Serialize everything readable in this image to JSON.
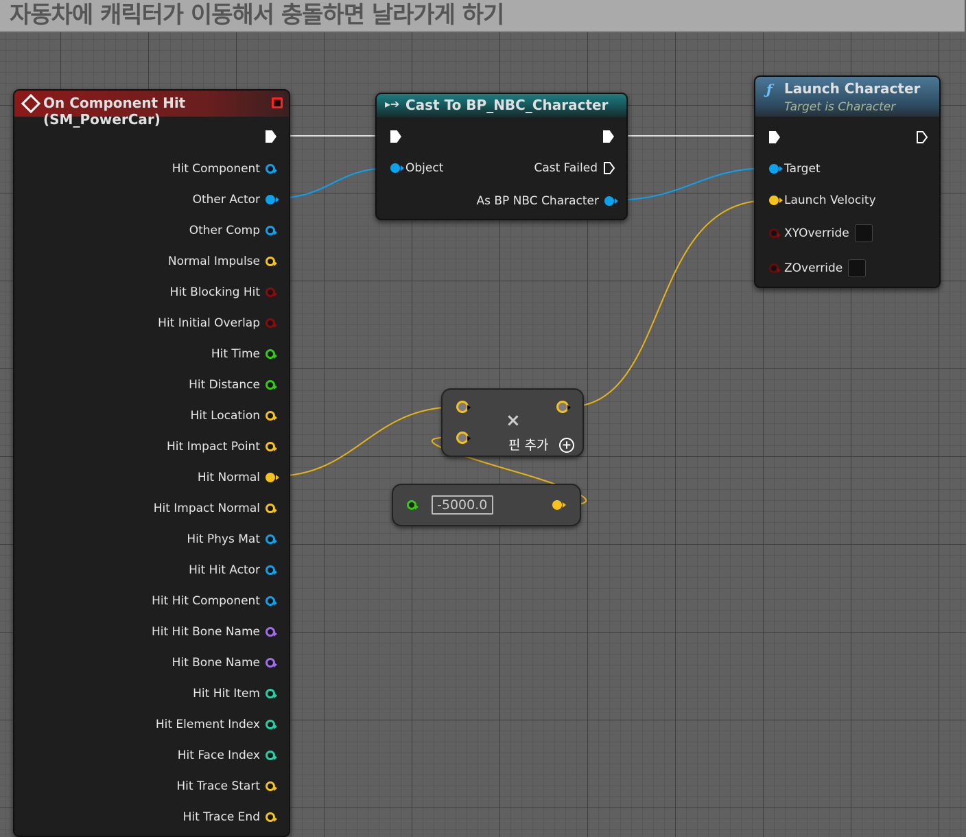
{
  "title": "자동차에 캐릭터가 이동해서 충돌하면 날라가게 하기",
  "colors": {
    "object": "#0ba2f0",
    "vector": "#f4c21a",
    "bool": "#8a0c0c",
    "float": "#33cc11",
    "name": "#a26cf0",
    "int": "#1ed3a6",
    "exec": "#ffffff",
    "event_header": "#8b1a1a",
    "cast_header": "#1b6a6e",
    "function_header": "#3d5f78"
  },
  "event_node": {
    "title": "On Component Hit (SM_PowerCar)",
    "icon": "event-diamond-icon",
    "pins": [
      {
        "label": "Hit Component",
        "type": "object",
        "connected": false
      },
      {
        "label": "Other Actor",
        "type": "object",
        "connected": true
      },
      {
        "label": "Other Comp",
        "type": "object",
        "connected": false
      },
      {
        "label": "Normal Impulse",
        "type": "vector",
        "connected": false
      },
      {
        "label": "Hit Blocking Hit",
        "type": "bool",
        "connected": false
      },
      {
        "label": "Hit Initial Overlap",
        "type": "bool",
        "connected": false
      },
      {
        "label": "Hit Time",
        "type": "float",
        "connected": false
      },
      {
        "label": "Hit Distance",
        "type": "float",
        "connected": false
      },
      {
        "label": "Hit Location",
        "type": "vector",
        "connected": false
      },
      {
        "label": "Hit Impact Point",
        "type": "vector",
        "connected": false
      },
      {
        "label": "Hit Normal",
        "type": "vector",
        "connected": true
      },
      {
        "label": "Hit Impact Normal",
        "type": "vector",
        "connected": false
      },
      {
        "label": "Hit Phys Mat",
        "type": "object",
        "connected": false
      },
      {
        "label": "Hit Hit Actor",
        "type": "object",
        "connected": false
      },
      {
        "label": "Hit Hit Component",
        "type": "object",
        "connected": false
      },
      {
        "label": "Hit Hit Bone Name",
        "type": "name",
        "connected": false
      },
      {
        "label": "Hit Bone Name",
        "type": "name",
        "connected": false
      },
      {
        "label": "Hit Hit Item",
        "type": "int",
        "connected": false
      },
      {
        "label": "Hit Element Index",
        "type": "int",
        "connected": false
      },
      {
        "label": "Hit Face Index",
        "type": "int",
        "connected": false
      },
      {
        "label": "Hit Trace Start",
        "type": "vector",
        "connected": false
      },
      {
        "label": "Hit Trace End",
        "type": "vector",
        "connected": false
      }
    ]
  },
  "cast_node": {
    "title": "Cast To BP_NBC_Character",
    "object": "Object",
    "cast_failed": "Cast Failed",
    "as_output": "As BP NBC Character"
  },
  "launch_node": {
    "title": "Launch Character",
    "subtitle": "Target is Character",
    "target": "Target",
    "launch_velocity": "Launch Velocity",
    "xy_override": "XYOverride",
    "z_override": "ZOverride",
    "xy_checked": false,
    "z_checked": false
  },
  "multiply_node": {
    "add_pin": "핀 추가",
    "operator": "×"
  },
  "float_node": {
    "value": "-5000.0"
  }
}
